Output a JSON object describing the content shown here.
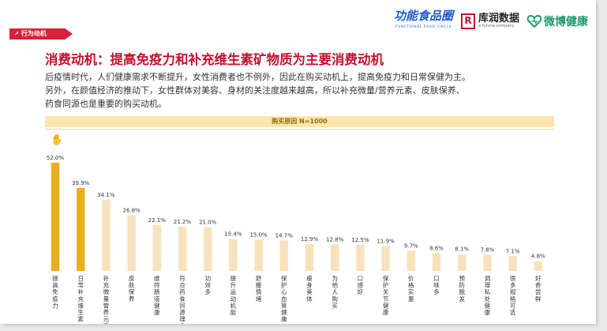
{
  "section_tag": {
    "icon": "flag-icon",
    "label": "行为动机"
  },
  "logos": {
    "brand1": "功能食品圈",
    "brand1_sub": "FUNCTIONAL FOOD CIRCLE",
    "brand2": "库润数据",
    "brand2_sub": "a futuna company",
    "brand3": "微博健康"
  },
  "heading": "消费动机：提高免疫力和补充维生素矿物质为主要消费动机",
  "description": {
    "line1": "后疫情时代，人们健康需求不断提升，女性消费者也不例外，因此在购买动机上，提高免疫力和日常保健为主。",
    "line2": "另外，在颜值经济的推动下，女性群体对美容、身材的关注度越来越高，所以补充微量/营养元素、皮肤保养、",
    "line3": "药食同源也是重要的购买动机。"
  },
  "colors": {
    "accent": "#d6223a",
    "highlight_bar": "#e8b020",
    "normal_bar": "#f8e2bd"
  },
  "chart_data": {
    "type": "bar",
    "title": "购买原因 N=1000",
    "categories": [
      "提高免疫力",
      "日常补充维生素",
      "补充微量营养元素",
      "皮肤保养",
      "维持肠道健康",
      "符合药食同源理念",
      "功效多",
      "提升运动机能",
      "舒缓情绪",
      "保护心血管健康",
      "瘦身美体",
      "为他人购买",
      "口感好",
      "保护关节健康",
      "价格实惠",
      "口味多",
      "预防脱发",
      "调理私处健康",
      "很多规格可选",
      "好奇尝鲜"
    ],
    "values": [
      52.0,
      39.9,
      34.1,
      26.8,
      22.1,
      21.2,
      21.0,
      15.4,
      15.0,
      14.7,
      12.9,
      12.8,
      12.5,
      11.9,
      9.7,
      8.6,
      8.1,
      7.8,
      7.1,
      4.8
    ],
    "value_labels": [
      "52.0%",
      "39.9%",
      "34.1%",
      "26.8%",
      "22.1%",
      "21.2%",
      "21.0%",
      "15.4%",
      "15.0%",
      "14.7%",
      "12.9%",
      "12.8%",
      "12.5%",
      "11.9%",
      "9.7%",
      "8.6%",
      "8.1%",
      "7.8%",
      "7.1%",
      "4.8%"
    ],
    "highlighted_count": 2,
    "ylim": [
      0,
      60
    ],
    "grid": false,
    "legend": "none"
  }
}
